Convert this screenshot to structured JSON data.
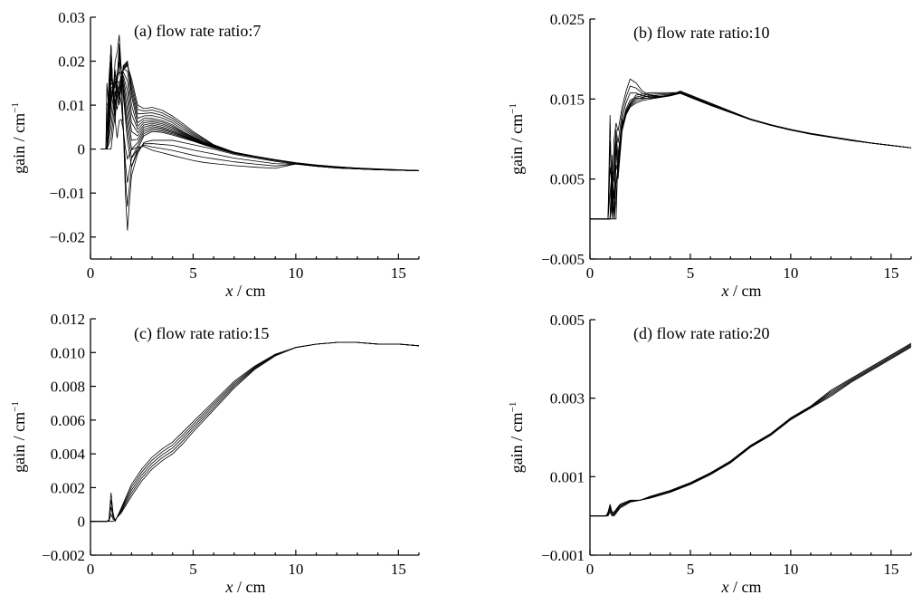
{
  "chart_data": [
    {
      "type": "line",
      "title": "(a)  flow rate ratio:7",
      "xlabel_italic": "x",
      "xlabel_unit": " / cm",
      "ylabel": "gain / cm",
      "ylabel_sup": "−1",
      "xlim": [
        0,
        16
      ],
      "ylim": [
        -0.025,
        0.03
      ],
      "xticks": [
        0,
        5,
        10,
        15
      ],
      "yticks": [
        -0.02,
        -0.01,
        0,
        0.01,
        0.02,
        0.03
      ],
      "ytick_labels": [
        "−0.02",
        "−0.01",
        "0",
        "0.01",
        "0.02",
        "0.03"
      ],
      "series": [
        {
          "x": [
            0.5,
            0.75,
            0.8,
            0.9,
            1.0,
            1.1,
            1.2,
            1.3,
            1.4,
            1.5,
            1.6,
            1.7,
            1.8,
            1.9,
            2.0,
            2.3,
            2.6,
            3.0,
            3.5,
            4.0,
            4.5,
            5.0,
            5.5,
            6.0,
            7.0,
            8.0,
            9.0,
            10.0,
            11.0,
            12.0,
            13.0,
            14.0,
            15.0,
            16.0
          ],
          "y": [
            0,
            0,
            0.0,
            0.016,
            0.023,
            0.012,
            0.02,
            0.022,
            0.026,
            0.018,
            0.005,
            -0.01,
            -0.0185,
            -0.012,
            -0.006,
            -0.001,
            0.0015,
            0.002,
            0.002,
            0.002,
            0.0015,
            0.001,
            0.0005,
            0.0,
            -0.0012,
            -0.002,
            -0.0028,
            -0.0034,
            -0.0039,
            -0.0043,
            -0.0045,
            -0.0047,
            -0.0048,
            -0.0049
          ]
        },
        {
          "x": [
            0.5,
            0.8,
            1.0,
            1.2,
            1.4,
            1.6,
            1.8,
            2.0,
            2.3,
            2.6,
            3.0,
            3.5,
            4.0,
            4.5,
            5.0,
            5.5,
            6.0,
            7.0,
            8.0,
            9.0,
            10.0,
            11.0,
            12.0,
            13.0,
            14.0,
            15.0,
            16.0
          ],
          "y": [
            0,
            0,
            0.02,
            0.006,
            0.024,
            0.012,
            0.002,
            -0.004,
            0.0,
            0.003,
            0.004,
            0.0038,
            0.0032,
            0.0025,
            0.0018,
            0.001,
            0.0003,
            -0.001,
            -0.0018,
            -0.0026,
            -0.0032,
            -0.0038,
            -0.0042,
            -0.0044,
            -0.0046,
            -0.0048,
            -0.0049
          ]
        },
        {
          "x": [
            0.5,
            0.8,
            1.0,
            1.2,
            1.4,
            1.6,
            1.8,
            2.0,
            2.3,
            2.6,
            3.0,
            3.5,
            4.0,
            4.5,
            5.0,
            5.5,
            6.0,
            7.0,
            8.0,
            9.0,
            10.0,
            11.0,
            12.0,
            13.0,
            14.0,
            15.0,
            16.0
          ],
          "y": [
            0,
            0,
            0.015,
            0.014,
            0.02,
            0.016,
            0.011,
            0.004,
            0.003,
            0.005,
            0.0055,
            0.005,
            0.0042,
            0.0032,
            0.0022,
            0.0013,
            0.0005,
            -0.0009,
            -0.0017,
            -0.0025,
            -0.0032,
            -0.0037,
            -0.0041,
            -0.0044,
            -0.0046,
            -0.0048,
            -0.0049
          ]
        },
        {
          "x": [
            0.5,
            0.8,
            1.0,
            1.2,
            1.4,
            1.6,
            1.8,
            2.0,
            2.3,
            2.6,
            3.0,
            3.5,
            4.0,
            4.5,
            5.0,
            5.5,
            6.0,
            7.0,
            8.0,
            9.0,
            10.0,
            11.0,
            12.0,
            13.0,
            14.0,
            15.0,
            16.0
          ],
          "y": [
            0,
            0,
            0.01,
            0.018,
            0.01,
            0.019,
            0.02,
            0.012,
            0.006,
            0.007,
            0.007,
            0.0065,
            0.0055,
            0.004,
            0.0028,
            0.0016,
            0.0007,
            -0.0008,
            -0.0017,
            -0.0025,
            -0.0032,
            -0.0037,
            -0.0041,
            -0.0044,
            -0.0046,
            -0.0048,
            -0.0049
          ]
        },
        {
          "x": [
            0.5,
            0.8,
            1.0,
            1.2,
            1.4,
            1.6,
            1.8,
            2.0,
            2.3,
            2.6,
            3.0,
            3.5,
            4.0,
            4.5,
            5.0,
            5.5,
            6.0,
            7.0,
            8.0,
            9.0,
            10.0,
            11.0,
            12.0,
            13.0,
            14.0,
            15.0,
            16.0
          ],
          "y": [
            0,
            0,
            0.0,
            0.008,
            0.015,
            0.018,
            0.019,
            0.016,
            0.01,
            0.0092,
            0.0095,
            0.0088,
            0.0075,
            0.0058,
            0.004,
            0.0025,
            0.001,
            -0.0007,
            -0.0016,
            -0.0024,
            -0.0031,
            -0.0036,
            -0.004,
            -0.0043,
            -0.0045,
            -0.0047,
            -0.0049
          ]
        }
      ]
    },
    {
      "type": "line",
      "title": "(b)  flow rate ratio:10",
      "xlabel_italic": "x",
      "xlabel_unit": " / cm",
      "ylabel": "gain / cm",
      "ylabel_sup": "−1",
      "xlim": [
        0,
        16
      ],
      "ylim": [
        -0.005,
        0.025
      ],
      "xticks": [
        0,
        5,
        10,
        15
      ],
      "yticks": [
        -0.005,
        0.005,
        0.015,
        0.025
      ],
      "ytick_labels": [
        "−0.005",
        "0.005",
        "0.015",
        "0.025"
      ],
      "series": [
        {
          "x": [
            0.0,
            0.8,
            0.9,
            1.0,
            1.1,
            1.2,
            1.3,
            1.4,
            1.6,
            1.8,
            2.0,
            2.3,
            2.6,
            3.0,
            3.5,
            4.0,
            4.5,
            5.0,
            5.5,
            6.0,
            7.0,
            8.0,
            9.0,
            10.0,
            11.0,
            12.0,
            13.0,
            14.0,
            15.0,
            16.0
          ],
          "y": [
            0,
            0,
            0.0,
            0.013,
            0.0,
            0.01,
            0.012,
            0.011,
            0.014,
            0.016,
            0.0175,
            0.017,
            0.016,
            0.0155,
            0.0153,
            0.0155,
            0.016,
            0.0155,
            0.015,
            0.0145,
            0.0135,
            0.0125,
            0.0118,
            0.0112,
            0.0107,
            0.0103,
            0.0099,
            0.0095,
            0.0092,
            0.0089
          ]
        },
        {
          "x": [
            0.0,
            0.8,
            0.9,
            1.0,
            1.1,
            1.2,
            1.3,
            1.4,
            1.6,
            1.8,
            2.0,
            2.3,
            2.6,
            3.0,
            3.5,
            4.0,
            4.5,
            5.0,
            5.5,
            6.0,
            7.0,
            8.0,
            9.0,
            10.0,
            11.0,
            12.0,
            13.0,
            14.0,
            15.0,
            16.0
          ],
          "y": [
            0,
            0,
            0.0,
            0.0,
            0.008,
            0.0,
            0.009,
            0.005,
            0.011,
            0.013,
            0.014,
            0.0145,
            0.0148,
            0.015,
            0.0152,
            0.0154,
            0.0157,
            0.0152,
            0.0147,
            0.0142,
            0.0133,
            0.0124,
            0.0117,
            0.0111,
            0.0106,
            0.0102,
            0.0098,
            0.0095,
            0.0092,
            0.0089
          ]
        },
        {
          "x": [
            0.0,
            0.8,
            0.9,
            1.0,
            1.1,
            1.2,
            1.3,
            1.4,
            1.6,
            1.8,
            2.0,
            2.3,
            2.6,
            3.0,
            3.5,
            4.0,
            4.5,
            5.0,
            5.5,
            6.0,
            7.0,
            8.0,
            9.0,
            10.0,
            11.0,
            12.0,
            13.0,
            14.0,
            15.0,
            16.0
          ],
          "y": [
            0,
            0,
            0.0,
            0.0,
            0.0,
            0.0,
            0.0,
            0.008,
            0.012,
            0.0135,
            0.0145,
            0.0155,
            0.0156,
            0.0158,
            0.0158,
            0.0158,
            0.0158,
            0.0153,
            0.0148,
            0.0143,
            0.0134,
            0.0125,
            0.0118,
            0.0112,
            0.0107,
            0.0103,
            0.0099,
            0.0095,
            0.0092,
            0.0089
          ]
        }
      ]
    },
    {
      "type": "line",
      "title": "(c)  flow rate ratio:15",
      "xlabel_italic": "x",
      "xlabel_unit": " / cm",
      "ylabel": "gain / cm",
      "ylabel_sup": "−1",
      "xlim": [
        0,
        16
      ],
      "ylim": [
        -0.002,
        0.012
      ],
      "xticks": [
        0,
        5,
        10,
        15
      ],
      "yticks": [
        -0.002,
        0,
        0.002,
        0.004,
        0.006,
        0.008,
        0.01,
        0.012
      ],
      "ytick_labels": [
        "−0.002",
        "0",
        "0.002",
        "0.004",
        "0.006",
        "0.008",
        "0.010",
        "0.012"
      ],
      "series": [
        {
          "x": [
            0.0,
            0.8,
            0.9,
            1.0,
            1.1,
            1.2,
            1.5,
            2.0,
            2.5,
            3.0,
            3.5,
            4.0,
            4.5,
            5.0,
            6.0,
            7.0,
            8.0,
            9.0,
            10.0,
            11.0,
            12.0,
            13.0,
            14.0,
            15.0,
            16.0
          ],
          "y": [
            0,
            0,
            0.0001,
            0.0017,
            0.0005,
            0.0,
            0.0008,
            0.0022,
            0.0031,
            0.0038,
            0.0043,
            0.0047,
            0.0053,
            0.0059,
            0.0071,
            0.0083,
            0.0092,
            0.0099,
            0.0103,
            0.0105,
            0.0106,
            0.0106,
            0.0105,
            0.0105,
            0.0104
          ]
        },
        {
          "x": [
            0.0,
            0.8,
            0.9,
            1.0,
            1.1,
            1.2,
            1.5,
            2.0,
            2.5,
            3.0,
            3.5,
            4.0,
            4.5,
            5.0,
            6.0,
            7.0,
            8.0,
            9.0,
            10.0,
            11.0,
            12.0,
            13.0,
            14.0,
            15.0,
            16.0
          ],
          "y": [
            0,
            0,
            0.0,
            0.0,
            0.0,
            0.0001,
            0.0005,
            0.0015,
            0.0024,
            0.0031,
            0.0036,
            0.004,
            0.0046,
            0.0053,
            0.0066,
            0.0079,
            0.009,
            0.0098,
            0.0103,
            0.0105,
            0.0106,
            0.0106,
            0.0105,
            0.0105,
            0.0104
          ]
        }
      ]
    },
    {
      "type": "line",
      "title": "(d)  flow rate ratio:20",
      "xlabel_italic": "x",
      "xlabel_unit": " / cm",
      "ylabel": "gain / cm",
      "ylabel_sup": "−1",
      "xlim": [
        0,
        16
      ],
      "ylim": [
        -0.001,
        0.005
      ],
      "xticks": [
        0,
        5,
        10,
        15
      ],
      "yticks": [
        -0.001,
        0.001,
        0.003,
        0.005
      ],
      "ytick_labels": [
        "−0.001",
        "0.001",
        "0.003",
        "0.005"
      ],
      "series": [
        {
          "x": [
            0.0,
            0.8,
            0.9,
            1.0,
            1.1,
            1.2,
            1.5,
            2.0,
            2.5,
            3.0,
            4.0,
            5.0,
            6.0,
            7.0,
            8.0,
            9.0,
            10.0,
            11.0,
            12.0,
            13.0,
            14.0,
            15.0,
            16.0
          ],
          "y": [
            0,
            0,
            0.0001,
            0.0003,
            0.0001,
            0.0001,
            0.0003,
            0.0004,
            0.0004,
            0.0005,
            0.00065,
            0.00085,
            0.0011,
            0.0014,
            0.0018,
            0.0021,
            0.0025,
            0.0028,
            0.0032,
            0.0035,
            0.0038,
            0.0041,
            0.0044
          ]
        },
        {
          "x": [
            0.0,
            0.8,
            0.9,
            1.0,
            1.1,
            1.2,
            1.5,
            2.0,
            2.5,
            3.0,
            4.0,
            5.0,
            6.0,
            7.0,
            8.0,
            9.0,
            10.0,
            11.0,
            12.0,
            13.0,
            14.0,
            15.0,
            16.0
          ],
          "y": [
            0,
            0,
            0.0,
            0.0001,
            0.0,
            0.0,
            0.0002,
            0.00035,
            0.0004,
            0.00045,
            0.0006,
            0.0008,
            0.00105,
            0.00135,
            0.00175,
            0.00205,
            0.00245,
            0.00275,
            0.00305,
            0.0034,
            0.0037,
            0.004,
            0.0043
          ]
        }
      ]
    }
  ]
}
